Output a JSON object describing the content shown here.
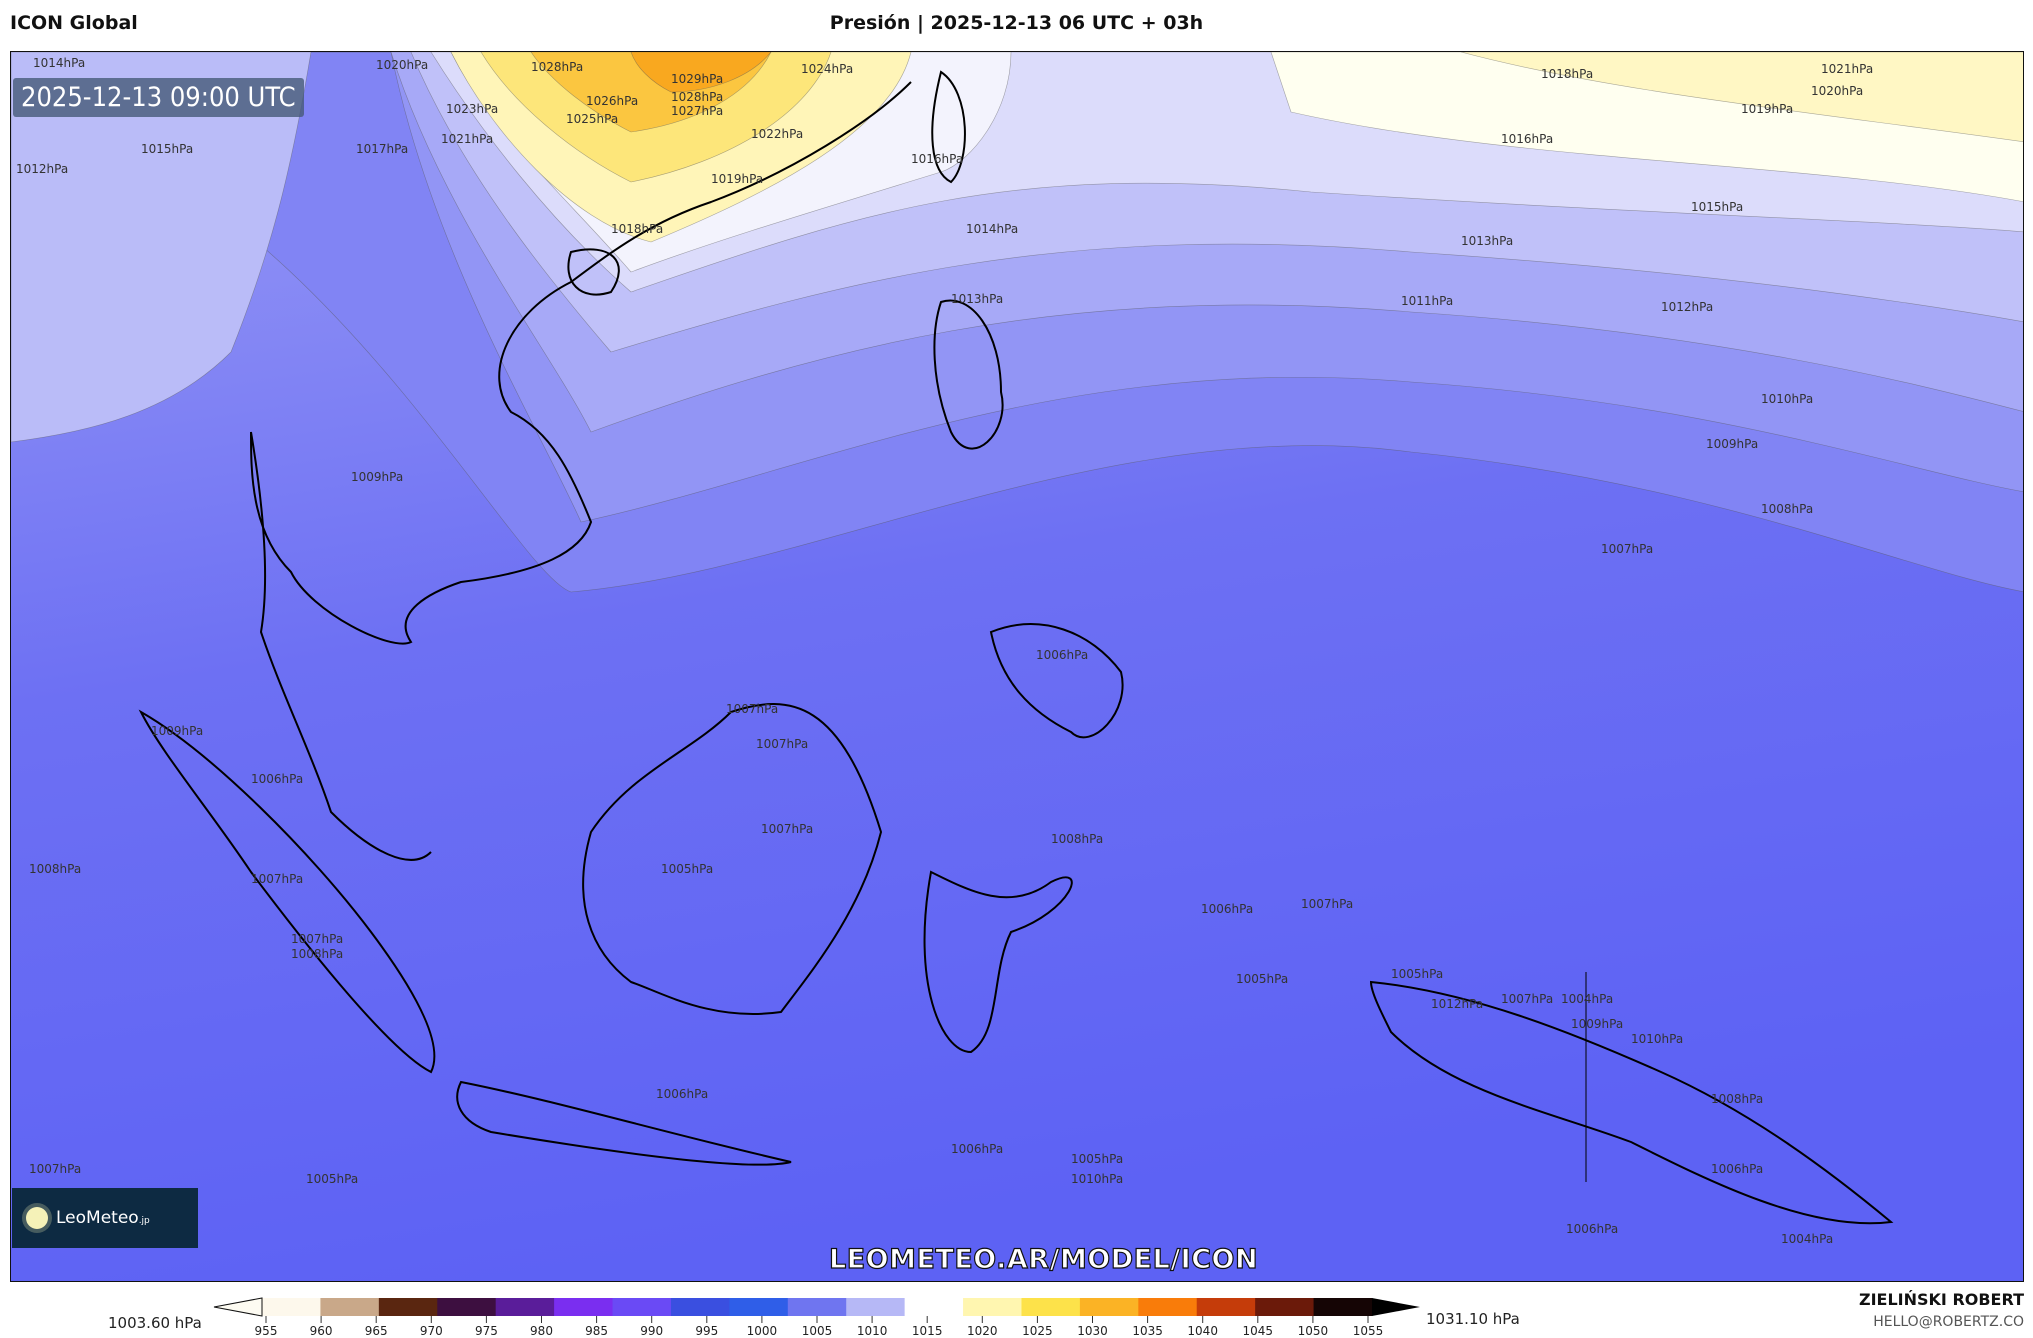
{
  "header": {
    "model": "ICON Global",
    "title": "Presión | 2025-12-13 06 UTC + 03h"
  },
  "map": {
    "valid_time": "2025-12-13 09:00 UTC",
    "watermark": "LEOMETEO.AR/MODEL/ICON",
    "logo_text": "LeoMeteo",
    "logo_suffix": ".jp",
    "contour_labels": [
      "1014hPa",
      "1020hPa",
      "1028hPa",
      "1029hPa",
      "1024hPa",
      "1023hPa",
      "1026hPa",
      "1028hPa",
      "1025hPa",
      "1027hPa",
      "1021hPa",
      "1022hPa",
      "1017hPa",
      "1019hPa",
      "1018hPa",
      "1016hPa",
      "1015hPa",
      "1012hPa",
      "1018hPa",
      "1021hPa",
      "1020hPa",
      "1019hPa",
      "1016hPa",
      "1015hPa",
      "1014hPa",
      "1013hPa",
      "1013hPa",
      "1011hPa",
      "1012hPa",
      "1010hPa",
      "1009hPa",
      "1008hPa",
      "1007hPa",
      "1009hPa",
      "1006hPa",
      "1009hPa",
      "1006hPa",
      "1007hPa",
      "1007hPa",
      "1008hPa",
      "1007hPa",
      "1007hPa",
      "1007hPa",
      "1008hPa",
      "1005hPa",
      "1008hPa",
      "1007hPa",
      "1006hPa",
      "1005hPa",
      "1012hPa",
      "1007hPa",
      "1004hPa",
      "1009hPa",
      "1010hPa",
      "1005hPa",
      "1006hPa",
      "1006hPa",
      "1005hPa",
      "1010hPa",
      "1008hPa",
      "1006hPa",
      "1007hPa",
      "1005hPa",
      "1006hPa",
      "1004hPa"
    ]
  },
  "colorbar": {
    "min_label": "1003.60 hPa",
    "max_label": "1031.10 hPa",
    "ticks": [
      "955",
      "960",
      "965",
      "970",
      "975",
      "980",
      "985",
      "990",
      "995",
      "1000",
      "1005",
      "1010",
      "1015",
      "1020",
      "1025",
      "1030",
      "1035",
      "1040",
      "1045",
      "1050",
      "1055"
    ],
    "colors": [
      "#fdf8ec",
      "#c9a889",
      "#5a2610",
      "#3d0f40",
      "#5a1d9a",
      "#7a2ef0",
      "#6a4af5",
      "#3a4fe0",
      "#2f5ee8",
      "#6f75f0",
      "#b6b8f6",
      "#ffffff",
      "#fff6b0",
      "#fde24a",
      "#fbb325",
      "#f97c0a",
      "#c53c0a",
      "#6b1a0a",
      "#150505"
    ]
  },
  "footer": {
    "author": "ZIELIŃSKI ROBERT",
    "email": "HELLO@ROBERTZ.CO"
  }
}
